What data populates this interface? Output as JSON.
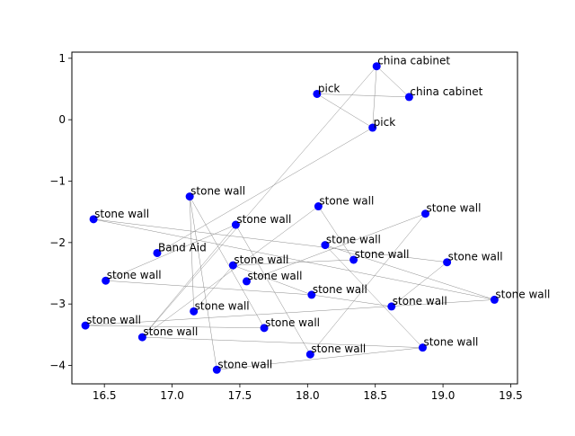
{
  "chart_data": {
    "type": "scatter",
    "title": "",
    "xlabel": "",
    "ylabel": "",
    "xlim": [
      16.26,
      19.55
    ],
    "ylim": [
      -4.3,
      1.1
    ],
    "xticks": [
      16.5,
      17.0,
      17.5,
      18.0,
      18.5,
      19.0,
      19.5
    ],
    "xtick_labels": [
      "16.5",
      "17.0",
      "17.5",
      "18.0",
      "18.5",
      "19.0",
      "19.5"
    ],
    "yticks": [
      1,
      0,
      -1,
      -2,
      -3,
      -4
    ],
    "ytick_labels": [
      "1",
      "0",
      "−1",
      "−2",
      "−3",
      "−4"
    ],
    "grid": false,
    "point_color": "#0000ff",
    "edge_color": "#8c8c8c",
    "points": [
      {
        "label": "china cabinet",
        "x": 18.51,
        "y": 0.87
      },
      {
        "label": "china cabinet",
        "x": 18.75,
        "y": 0.37
      },
      {
        "label": "pick",
        "x": 18.07,
        "y": 0.42
      },
      {
        "label": "pick",
        "x": 18.48,
        "y": -0.13
      },
      {
        "label": "stone wall",
        "x": 17.13,
        "y": -1.25
      },
      {
        "label": "stone wall",
        "x": 18.08,
        "y": -1.41
      },
      {
        "label": "stone wall",
        "x": 16.42,
        "y": -1.62
      },
      {
        "label": "stone wall",
        "x": 17.47,
        "y": -1.71
      },
      {
        "label": "stone wall",
        "x": 18.87,
        "y": -1.53
      },
      {
        "label": "stone wall",
        "x": 18.13,
        "y": -2.04
      },
      {
        "label": "Band Aid",
        "x": 16.89,
        "y": -2.17
      },
      {
        "label": "stone wall",
        "x": 18.34,
        "y": -2.28
      },
      {
        "label": "stone wall",
        "x": 19.03,
        "y": -2.32
      },
      {
        "label": "stone wall",
        "x": 17.45,
        "y": -2.37
      },
      {
        "label": "stone wall",
        "x": 16.51,
        "y": -2.62
      },
      {
        "label": "stone wall",
        "x": 17.55,
        "y": -2.63
      },
      {
        "label": "stone wall",
        "x": 18.03,
        "y": -2.85
      },
      {
        "label": "stone wall",
        "x": 19.38,
        "y": -2.93
      },
      {
        "label": "stone wall",
        "x": 18.62,
        "y": -3.04
      },
      {
        "label": "stone wall",
        "x": 17.16,
        "y": -3.12
      },
      {
        "label": "stone wall",
        "x": 16.36,
        "y": -3.35
      },
      {
        "label": "stone wall",
        "x": 17.68,
        "y": -3.39
      },
      {
        "label": "stone wall",
        "x": 16.78,
        "y": -3.54
      },
      {
        "label": "stone wall",
        "x": 18.85,
        "y": -3.71
      },
      {
        "label": "stone wall",
        "x": 18.02,
        "y": -3.82
      },
      {
        "label": "stone wall",
        "x": 17.33,
        "y": -4.07
      }
    ],
    "edges": [
      [
        0,
        1
      ],
      [
        0,
        3
      ],
      [
        2,
        1
      ],
      [
        2,
        3
      ],
      [
        0,
        22
      ],
      [
        3,
        10
      ],
      [
        4,
        19
      ],
      [
        4,
        21
      ],
      [
        4,
        25
      ],
      [
        5,
        11
      ],
      [
        5,
        22
      ],
      [
        6,
        12
      ],
      [
        6,
        17
      ],
      [
        7,
        14
      ],
      [
        7,
        22
      ],
      [
        7,
        24
      ],
      [
        8,
        15
      ],
      [
        8,
        24
      ],
      [
        9,
        17
      ],
      [
        9,
        23
      ],
      [
        11,
        13
      ],
      [
        13,
        16
      ],
      [
        13,
        19
      ],
      [
        14,
        16
      ],
      [
        16,
        18
      ],
      [
        17,
        20
      ],
      [
        18,
        12
      ],
      [
        20,
        21
      ],
      [
        22,
        23
      ],
      [
        25,
        23
      ]
    ]
  }
}
